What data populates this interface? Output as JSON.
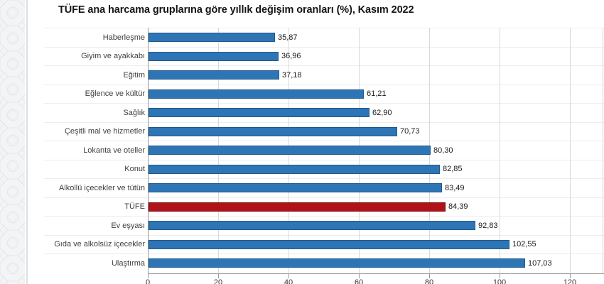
{
  "title": "TÜFE ana harcama gruplarına göre yıllık değişim oranları (%), Kasım 2022",
  "chart_data": {
    "type": "bar",
    "orientation": "horizontal",
    "title": "TÜFE ana harcama gruplarına göre yıllık değişim oranları (%), Kasım 2022",
    "categories": [
      "Haberleşme",
      "Giyim ve ayakkabı",
      "Eğitim",
      "Eğlence ve kültür",
      "Sağlık",
      "Çeşitli mal ve hizmetler",
      "Lokanta ve oteller",
      "Konut",
      "Alkollü içecekler ve tütün",
      "TÜFE",
      "Ev eşyası",
      "Gıda ve alkolsüz içecekler",
      "Ulaştırma"
    ],
    "values": [
      35.87,
      36.96,
      37.18,
      61.21,
      62.9,
      70.73,
      80.3,
      82.85,
      83.49,
      84.39,
      92.83,
      102.55,
      107.03
    ],
    "value_labels": [
      "35,87",
      "36,96",
      "37,18",
      "61,21",
      "62,90",
      "70,73",
      "80,30",
      "82,85",
      "83,49",
      "84,39",
      "92,83",
      "102,55",
      "107,03"
    ],
    "highlight_category": "TÜFE",
    "xlabel": "",
    "ylabel": "",
    "xlim": [
      0,
      129
    ],
    "x_ticks": [
      0,
      20,
      40,
      60,
      80,
      100,
      120
    ],
    "x_tick_labels": [
      "0",
      "20",
      "40",
      "60",
      "80",
      "100",
      "120"
    ],
    "grid": true,
    "legend": false,
    "colors": {
      "bar": "#2e75b6",
      "bar_border": "#21598c",
      "highlight": "#b11218",
      "highlight_border": "#7c0d11",
      "gridline": "#d9d9d9",
      "row_line": "#ededed",
      "axis": "#999999",
      "category_label": "#3f3f3f",
      "value_label": "#1a1a1a",
      "title": "#151515",
      "side_strip_bg": "#f3f4f6",
      "side_strip_pattern": "#e3e6e9"
    }
  }
}
